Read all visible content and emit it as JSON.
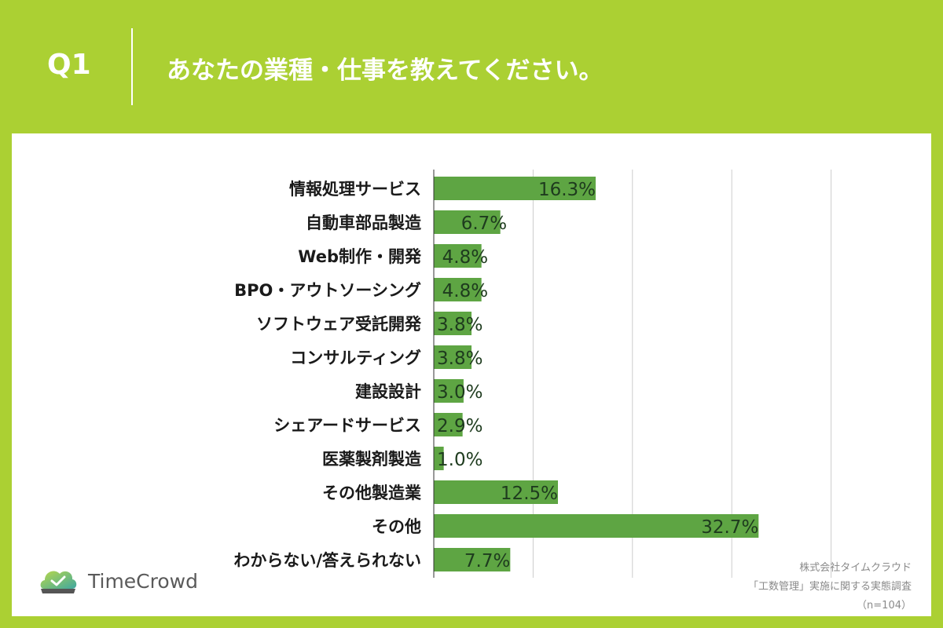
{
  "header": {
    "question_id": "Q1",
    "question_text": "あなたの業種・仕事を教えてください。"
  },
  "brand": {
    "name": "TimeCrowd",
    "accent": "#abd033"
  },
  "credit": {
    "company": "株式会社タイムクラウド",
    "survey": "「工数管理」実施に関する実態調査",
    "sample": "（n=104）"
  },
  "colors": {
    "bar": "#5ea543",
    "label": "#1a1a1a",
    "value": "#1e3b1e",
    "grid": "#cccccc",
    "axis": "#333333"
  },
  "chart_data": {
    "type": "bar",
    "orientation": "horizontal",
    "title": "あなたの業種・仕事を教えてください。",
    "xlim": [
      0,
      40
    ],
    "grid": true,
    "categories": [
      "情報処理サービス",
      "自動車部品製造",
      "Web制作・開発",
      "BPO・アウトソーシング",
      "ソフトウェア受託開発",
      "コンサルティング",
      "建設設計",
      "シェアードサービス",
      "医薬製剤製造",
      "その他製造業",
      "その他",
      "わからない/答えられない"
    ],
    "values": [
      16.3,
      6.7,
      4.8,
      4.8,
      3.8,
      3.8,
      3.0,
      2.9,
      1.0,
      12.5,
      32.7,
      7.7
    ],
    "value_labels": [
      "16.3%",
      "6.7%",
      "4.8%",
      "4.8%",
      "3.8%",
      "3.8%",
      "3.0%",
      "2.9%",
      "1.0%",
      "12.5%",
      "32.7%",
      "7.7%"
    ]
  }
}
